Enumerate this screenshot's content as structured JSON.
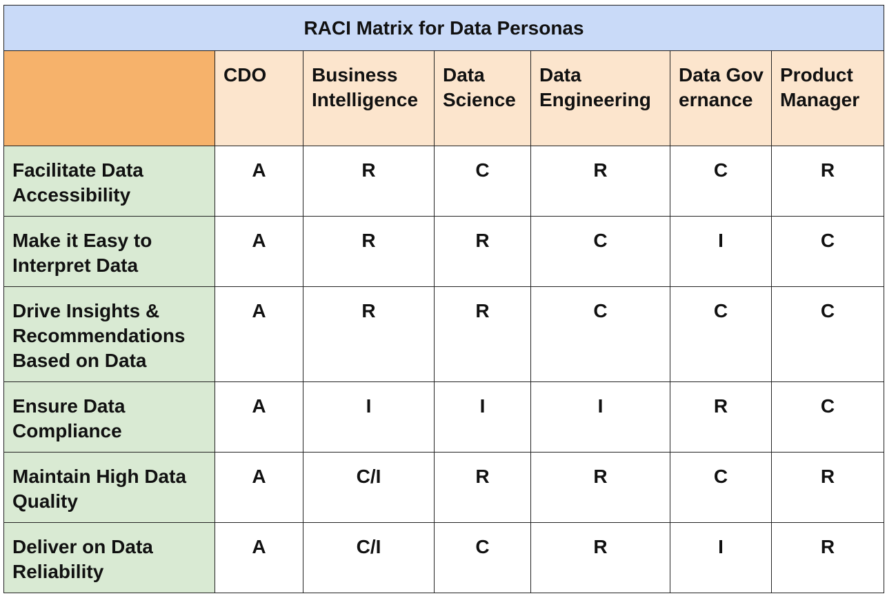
{
  "title": "RACI Matrix for Data Personas",
  "columns": [
    "CDO",
    "Business Intelligence",
    "Data Science",
    "Data Engineering",
    "Data Governance",
    "Product Manager"
  ],
  "rows": [
    {
      "label": "Facilitate Data Accessibility",
      "values": [
        "A",
        "R",
        "C",
        "R",
        "C",
        "R"
      ]
    },
    {
      "label": "Make it Easy to Interpret Data",
      "values": [
        "A",
        "R",
        "R",
        "C",
        "I",
        "C"
      ]
    },
    {
      "label": "Drive Insights & Recommendations Based on Data",
      "values": [
        "A",
        "R",
        "R",
        "C",
        "C",
        "C"
      ]
    },
    {
      "label": "Ensure Data Compliance",
      "values": [
        "A",
        "I",
        "I",
        "I",
        "R",
        "C"
      ]
    },
    {
      "label": "Maintain High Data Quality",
      "values": [
        "A",
        "C/I",
        "R",
        "R",
        "C",
        "R"
      ]
    },
    {
      "label": "Deliver on Data Reliability",
      "values": [
        "A",
        "C/I",
        "C",
        "R",
        "I",
        "R"
      ]
    }
  ],
  "colors": {
    "title_bg": "#c9daf8",
    "corner_bg": "#f6b26b",
    "column_header_bg": "#fce5cd",
    "row_header_bg": "#d9ead3",
    "cell_bg": "#ffffff",
    "border": "#222222"
  }
}
